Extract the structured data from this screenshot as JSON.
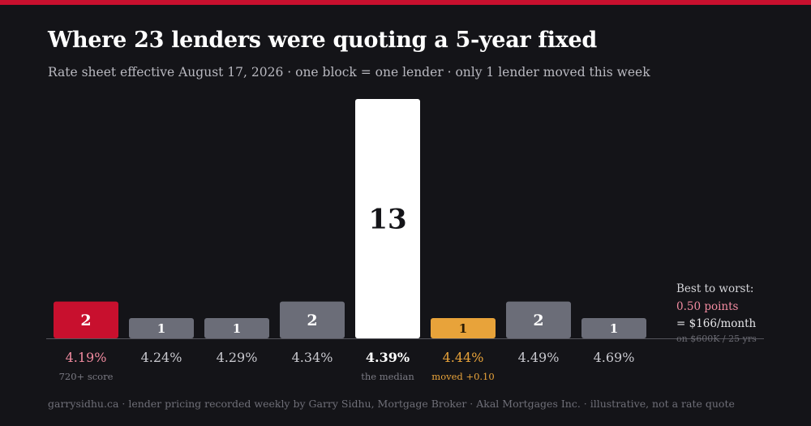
{
  "header": {
    "title": "Where 23 lenders were quoting a 5-year fixed",
    "subtitle": "Rate sheet effective August 17, 2026 · one block = one lender · only 1 lender moved this week"
  },
  "side_note": {
    "heading": "Best to worst:",
    "difference": "0.50 points",
    "monthly": "= $166/month",
    "basis": "on $600K / 25 yrs"
  },
  "footer": "garrysidhu.ca · lender pricing recorded weekly by Garry Sidhu, Mortgage Broker · Akal Mortgages Inc. · illustrative, not a rate quote",
  "colors": {
    "background": "#141418",
    "brand_red": "#c8102e",
    "neutral_bar": "#6b6d78",
    "median_bar": "#ffffff",
    "moved_bar": "#e8a33a",
    "best_label": "#f28ba0",
    "moved_label": "#e8a33a"
  },
  "chart_data": {
    "type": "bar",
    "categories": [
      "4.19%",
      "4.24%",
      "4.29%",
      "4.34%",
      "4.39%",
      "4.44%",
      "4.49%",
      "4.69%"
    ],
    "values": [
      2,
      1,
      1,
      2,
      13,
      1,
      2,
      1
    ],
    "value_labels": [
      "2",
      "1",
      "1",
      "2",
      "13",
      "1",
      "2",
      "1"
    ],
    "annotations": [
      "720+ score",
      "",
      "",
      "",
      "the median",
      "moved +0.10",
      "",
      ""
    ],
    "bar_styles": [
      "best",
      "neutral",
      "neutral",
      "neutral",
      "median",
      "moved",
      "neutral",
      "neutral"
    ],
    "ylim": [
      0,
      13
    ],
    "grid": false,
    "legend": "none"
  }
}
